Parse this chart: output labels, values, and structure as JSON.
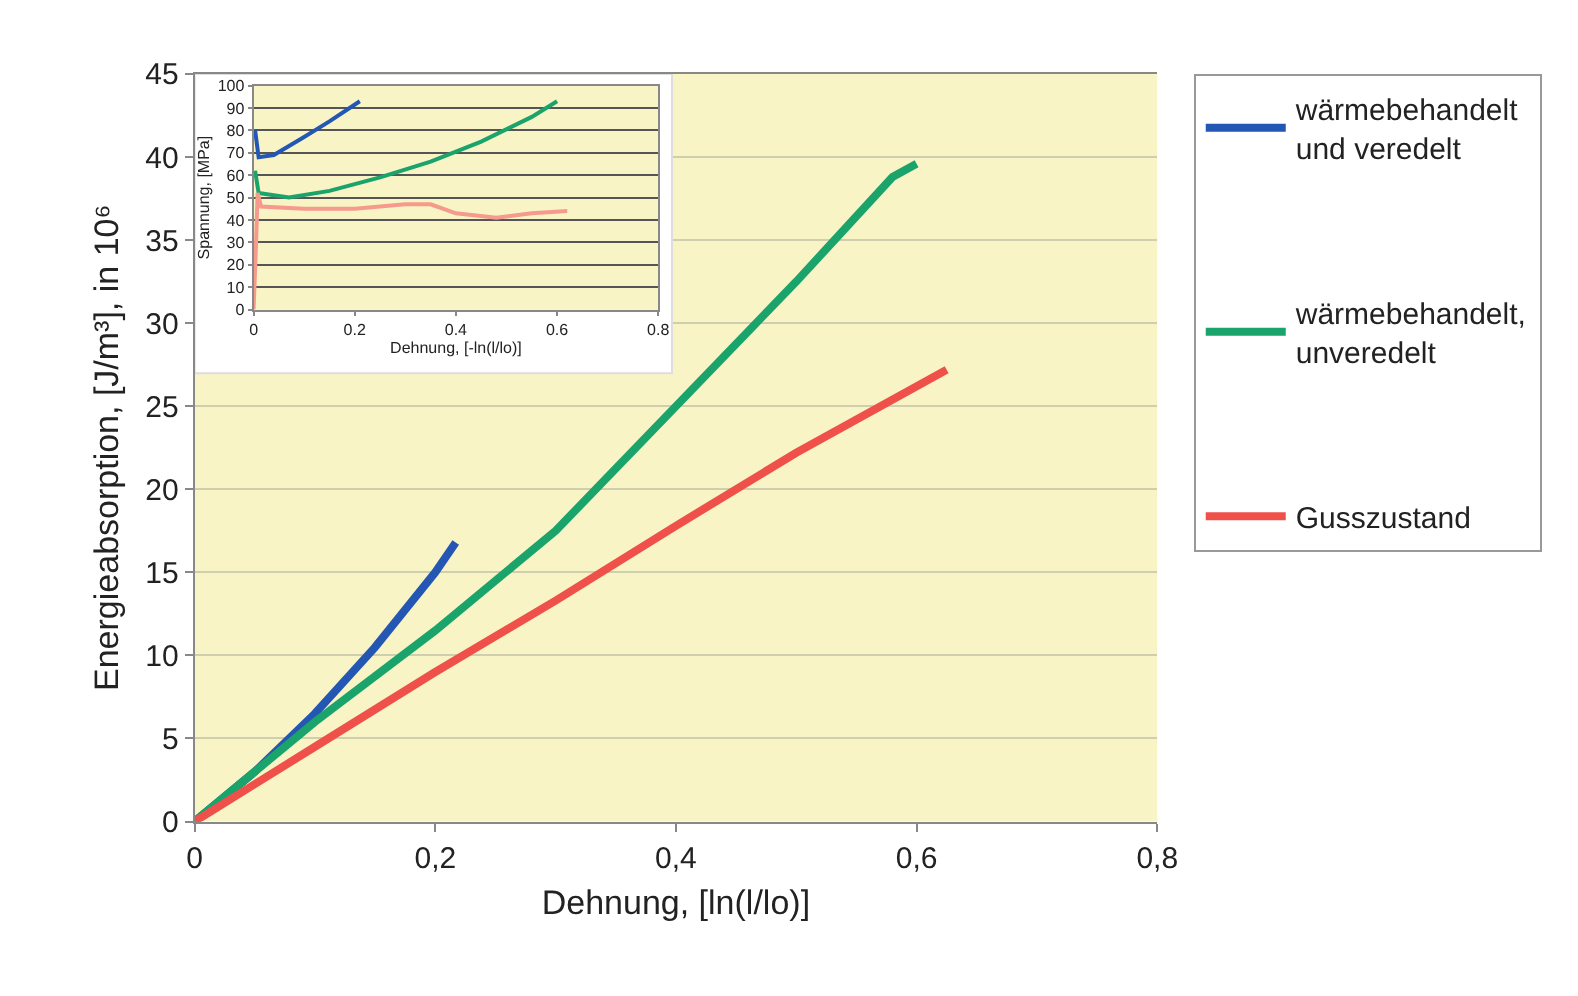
{
  "chart_data": [
    {
      "type": "line",
      "xlabel": "Dehnung, [ln(l/lo)]",
      "ylabel": "Energieabsorption, [J/m³], in 10⁶",
      "xlim": [
        0,
        0.8
      ],
      "xticks": [
        0,
        {
          "value": 0.2,
          "label": "0,2"
        },
        {
          "value": 0.4,
          "label": "0,4"
        },
        {
          "value": 0.6,
          "label": "0,6"
        },
        {
          "value": 0.8,
          "label": "0,8"
        }
      ],
      "ylim": [
        0,
        45
      ],
      "yticks": [
        0,
        5,
        10,
        15,
        20,
        25,
        30,
        35,
        40,
        45
      ],
      "grid": "y",
      "legend": "right",
      "line_style": "solid",
      "marker": "none",
      "series": [
        {
          "name": "wärmebehandelt\nund veredelt",
          "color": "#2456b4",
          "x": [
            0,
            0.05,
            0.1,
            0.15,
            0.2,
            0.217
          ],
          "values": [
            0,
            3,
            6.5,
            10.5,
            15,
            16.8
          ]
        },
        {
          "name": "wärmebehandelt,\nunveredelt",
          "color": "#1aa36a",
          "x": [
            0,
            0.05,
            0.1,
            0.2,
            0.3,
            0.4,
            0.5,
            0.58,
            0.6
          ],
          "values": [
            0,
            3,
            6,
            11.5,
            17.5,
            25,
            32.5,
            38.8,
            39.6
          ]
        },
        {
          "name": "Gusszustand",
          "color": "#f0504a",
          "x": [
            0,
            0.1,
            0.2,
            0.3,
            0.4,
            0.5,
            0.625
          ],
          "values": [
            0,
            4.5,
            9,
            13.3,
            17.8,
            22.2,
            27.2
          ]
        }
      ]
    },
    {
      "type": "line",
      "xlabel": "Dehnung, [-ln(l/lo)]",
      "ylabel": "Spannung, [MPa]",
      "xlim": [
        0,
        0.8
      ],
      "xticks": [
        0,
        {
          "value": 0.2,
          "label": "0.2"
        },
        {
          "value": 0.4,
          "label": "0.4"
        },
        {
          "value": 0.6,
          "label": "0.6"
        },
        {
          "value": 0.8,
          "label": "0.8"
        }
      ],
      "ylim": [
        0,
        100
      ],
      "yticks": [
        0,
        10,
        20,
        30,
        40,
        50,
        60,
        70,
        80,
        90,
        100
      ],
      "grid": "y",
      "line_style": "solid",
      "marker": "none",
      "series": [
        {
          "color": "#2456b4",
          "x": [
            0.003,
            0.01,
            0.04,
            0.1,
            0.15,
            0.21
          ],
          "values": [
            80,
            68,
            69,
            77,
            84,
            93
          ]
        },
        {
          "color": "#1aa36a",
          "x": [
            0.003,
            0.01,
            0.04,
            0.07,
            0.15,
            0.25,
            0.35,
            0.45,
            0.55,
            0.6
          ],
          "values": [
            62,
            52,
            51,
            50,
            53,
            59,
            66,
            75,
            86,
            93
          ]
        },
        {
          "color": "#f59a8c",
          "x": [
            0,
            0.005,
            0.008,
            0.015,
            0.1,
            0.2,
            0.3,
            0.35,
            0.4,
            0.48,
            0.55,
            0.62
          ],
          "values": [
            0,
            30,
            52,
            46,
            45,
            45,
            47,
            47,
            43,
            41,
            43,
            44
          ]
        }
      ]
    }
  ]
}
